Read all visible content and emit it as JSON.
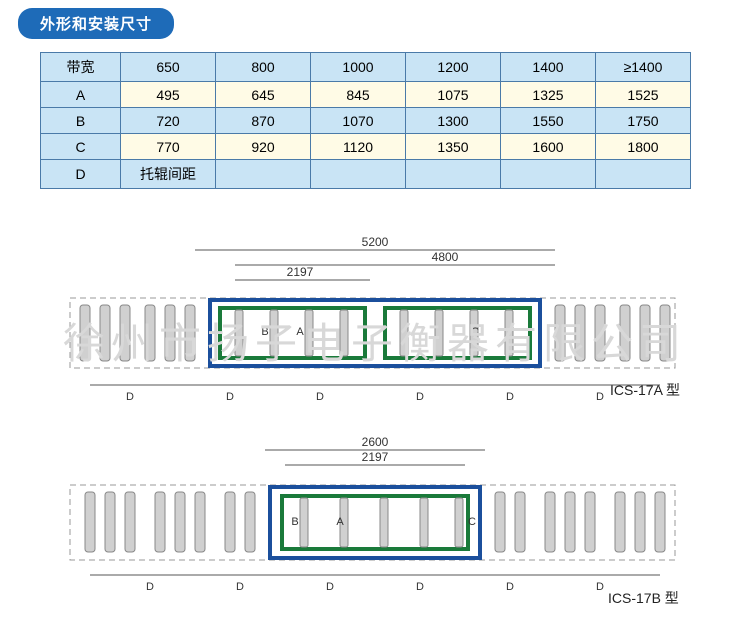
{
  "header": {
    "title": "外形和安装尺寸"
  },
  "table": {
    "row_styles": [
      "row-blue",
      "row-yellow",
      "row-blue",
      "row-yellow",
      "row-blue"
    ],
    "col_classes": [
      "c0",
      "c1",
      "c2",
      "c3",
      "c4",
      "c5",
      "c6"
    ],
    "colors": {
      "header_bg": "#c9e4f5",
      "alt_bg": "#fffbe6",
      "border": "#4a7aa8"
    },
    "rows": [
      [
        "带宽",
        "650",
        "800",
        "1000",
        "1200",
        "1400",
        "≥1400"
      ],
      [
        "A",
        "495",
        "645",
        "845",
        "1075",
        "1325",
        "1525"
      ],
      [
        "B",
        "720",
        "870",
        "1070",
        "1300",
        "1550",
        "1750"
      ],
      [
        "C",
        "770",
        "920",
        "1120",
        "1350",
        "1600",
        "1800"
      ],
      [
        "D",
        "托辊间距",
        "",
        "",
        "",
        "",
        ""
      ]
    ]
  },
  "watermark": "徐州市扬子电子衡器有限公司",
  "diagrams": {
    "a": {
      "label": "ICS-17A 型",
      "dims": {
        "top1": "5200",
        "top2": "4800",
        "top3": "2197"
      },
      "d_labels": [
        "D",
        "D",
        "D",
        "D",
        "D",
        "D"
      ],
      "side_labels": [
        "B",
        "A",
        "C"
      ]
    },
    "b": {
      "label": "ICS-17B 型",
      "dims": {
        "top1": "2600",
        "top2": "2197"
      },
      "d_labels": [
        "D",
        "D",
        "D",
        "D",
        "D",
        "D"
      ],
      "side_labels": [
        "B",
        "A",
        "C"
      ]
    },
    "colors": {
      "frame_blue": "#1b4f9c",
      "frame_green": "#1a7a3a",
      "roller": "#d0d0d0",
      "dash": "#999999"
    }
  }
}
